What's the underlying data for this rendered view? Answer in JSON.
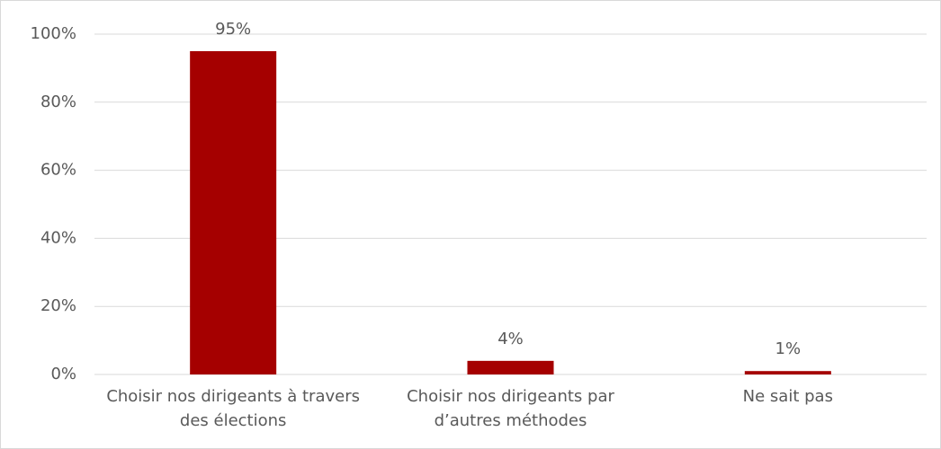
{
  "chart_data": {
    "type": "bar",
    "categories": [
      "Choisir nos dirigeants à travers des élections",
      "Choisir nos dirigeants par d’autres méthodes",
      "Ne sait pas"
    ],
    "values": [
      95,
      4,
      1
    ],
    "value_labels": [
      "95%",
      "4%",
      "1%"
    ],
    "color": "#a50000",
    "ylim": [
      0,
      100
    ],
    "yticks": [
      {
        "value": 0,
        "label": "0%"
      },
      {
        "value": 20,
        "label": "20%"
      },
      {
        "value": 40,
        "label": "40%"
      },
      {
        "value": 60,
        "label": "60%"
      },
      {
        "value": 80,
        "label": "80%"
      },
      {
        "value": 100,
        "label": "100%"
      }
    ],
    "grid": true
  }
}
